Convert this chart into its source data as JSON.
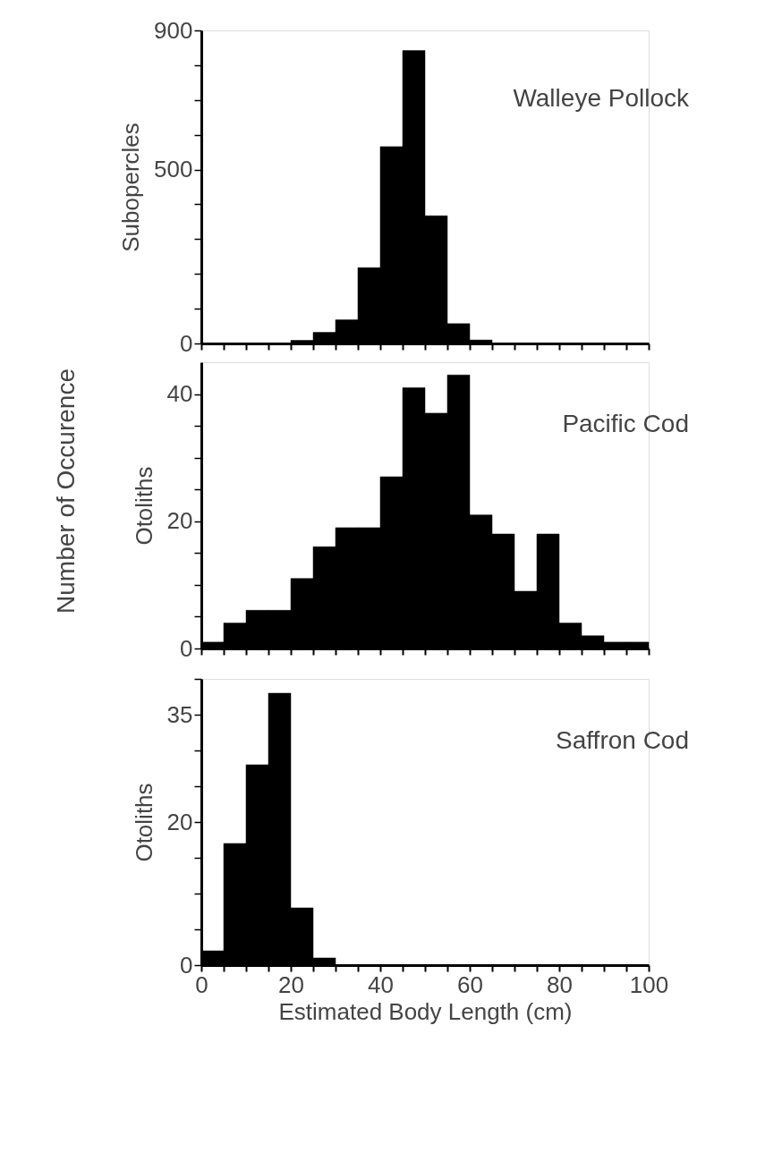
{
  "chart_data": [
    {
      "type": "histogram",
      "ylabel": "Subopercles",
      "bins": [
        0,
        5,
        10,
        15,
        20,
        25,
        30,
        35,
        40,
        45,
        50,
        55,
        60,
        65,
        70,
        75,
        80,
        85,
        90,
        95,
        100
      ],
      "series": [
        {
          "name": "Walleye Pollock",
          "color": "#000000",
          "values": [
            0,
            0,
            0,
            0,
            9,
            32,
            68,
            218,
            566,
            842,
            367,
            57,
            10,
            0,
            0,
            0,
            0,
            0,
            0,
            0
          ]
        }
      ],
      "xlim": [
        0,
        100
      ],
      "xticks": [
        {
          "value": 0,
          "label": null
        },
        {
          "value": 5,
          "label": null
        },
        {
          "value": 10,
          "label": null
        },
        {
          "value": 15,
          "label": null
        },
        {
          "value": 20,
          "label": null
        },
        {
          "value": 25,
          "label": null
        },
        {
          "value": 30,
          "label": null
        },
        {
          "value": 35,
          "label": null
        },
        {
          "value": 40,
          "label": null
        },
        {
          "value": 45,
          "label": null
        },
        {
          "value": 50,
          "label": null
        },
        {
          "value": 55,
          "label": null
        },
        {
          "value": 60,
          "label": null
        },
        {
          "value": 65,
          "label": null
        },
        {
          "value": 70,
          "label": null
        },
        {
          "value": 75,
          "label": null
        },
        {
          "value": 80,
          "label": null
        },
        {
          "value": 85,
          "label": null
        },
        {
          "value": 90,
          "label": null
        },
        {
          "value": 95,
          "label": null
        },
        {
          "value": 100,
          "label": null
        }
      ],
      "ylim": [
        0,
        900
      ],
      "yticks": [
        0,
        {
          "value": 100,
          "label": null
        },
        {
          "value": 200,
          "label": null
        },
        {
          "value": 300,
          "label": null
        },
        {
          "value": 400,
          "label": null
        },
        500,
        {
          "value": 600,
          "label": null
        },
        {
          "value": 700,
          "label": null
        },
        {
          "value": 800,
          "label": null
        },
        900
      ],
      "tick_labels": "y",
      "grid": false
    },
    {
      "type": "histogram",
      "ylabel": "Otoliths",
      "annotations": [
        "Number of Occurence"
      ],
      "bins": [
        0,
        5,
        10,
        15,
        20,
        25,
        30,
        35,
        40,
        45,
        50,
        55,
        60,
        65,
        70,
        75,
        80,
        85,
        90,
        95,
        100
      ],
      "series": [
        {
          "name": "Pacific Cod",
          "color": "#000000",
          "values": [
            1,
            4,
            6,
            6,
            11,
            16,
            19,
            19,
            27,
            41,
            37,
            43,
            21,
            18,
            9,
            18,
            4,
            2,
            1,
            1
          ]
        }
      ],
      "xlim": [
        0,
        100
      ],
      "xticks": [
        {
          "value": 0,
          "label": null
        },
        {
          "value": 5,
          "label": null
        },
        {
          "value": 10,
          "label": null
        },
        {
          "value": 15,
          "label": null
        },
        {
          "value": 20,
          "label": null
        },
        {
          "value": 25,
          "label": null
        },
        {
          "value": 30,
          "label": null
        },
        {
          "value": 35,
          "label": null
        },
        {
          "value": 40,
          "label": null
        },
        {
          "value": 45,
          "label": null
        },
        {
          "value": 50,
          "label": null
        },
        {
          "value": 55,
          "label": null
        },
        {
          "value": 60,
          "label": null
        },
        {
          "value": 65,
          "label": null
        },
        {
          "value": 70,
          "label": null
        },
        {
          "value": 75,
          "label": null
        },
        {
          "value": 80,
          "label": null
        },
        {
          "value": 85,
          "label": null
        },
        {
          "value": 90,
          "label": null
        },
        {
          "value": 95,
          "label": null
        },
        {
          "value": 100,
          "label": null
        }
      ],
      "ylim": [
        0,
        45
      ],
      "yticks": [
        0,
        {
          "value": 5,
          "label": null
        },
        {
          "value": 10,
          "label": null
        },
        {
          "value": 15,
          "label": null
        },
        20,
        {
          "value": 25,
          "label": null
        },
        {
          "value": 30,
          "label": null
        },
        {
          "value": 35,
          "label": null
        },
        40
      ],
      "tick_labels": "y",
      "grid": false
    },
    {
      "type": "histogram",
      "ylabel": "Otoliths",
      "xlabel": "Estimated Body Length (cm)",
      "bins": [
        0,
        5,
        10,
        15,
        20,
        25,
        30,
        35,
        40,
        45,
        50,
        55,
        60,
        65,
        70,
        75,
        80,
        85,
        90,
        95,
        100
      ],
      "series": [
        {
          "name": "Saffron Cod",
          "color": "#000000",
          "values": [
            2,
            17,
            28,
            38,
            8,
            1,
            0,
            0,
            0,
            0,
            0,
            0,
            0,
            0,
            0,
            0,
            0,
            0,
            0,
            0
          ]
        }
      ],
      "xlim": [
        0,
        100
      ],
      "xticks": [
        0,
        {
          "value": 5,
          "label": null
        },
        {
          "value": 10,
          "label": null
        },
        {
          "value": 15,
          "label": null
        },
        20,
        {
          "value": 25,
          "label": null
        },
        {
          "value": 30,
          "label": null
        },
        {
          "value": 35,
          "label": null
        },
        40,
        {
          "value": 45,
          "label": null
        },
        {
          "value": 50,
          "label": null
        },
        {
          "value": 55,
          "label": null
        },
        60,
        {
          "value": 65,
          "label": null
        },
        {
          "value": 70,
          "label": null
        },
        {
          "value": 75,
          "label": null
        },
        80,
        {
          "value": 85,
          "label": null
        },
        {
          "value": 90,
          "label": null
        },
        {
          "value": 95,
          "label": null
        },
        100
      ],
      "ylim": [
        0,
        40
      ],
      "yticks": [
        0,
        {
          "value": 5,
          "label": null
        },
        {
          "value": 10,
          "label": null
        },
        {
          "value": 15,
          "label": null
        },
        20,
        {
          "value": 25,
          "label": null
        },
        {
          "value": 30,
          "label": null
        },
        35,
        {
          "value": 40,
          "label": null
        }
      ],
      "grid": false
    }
  ]
}
